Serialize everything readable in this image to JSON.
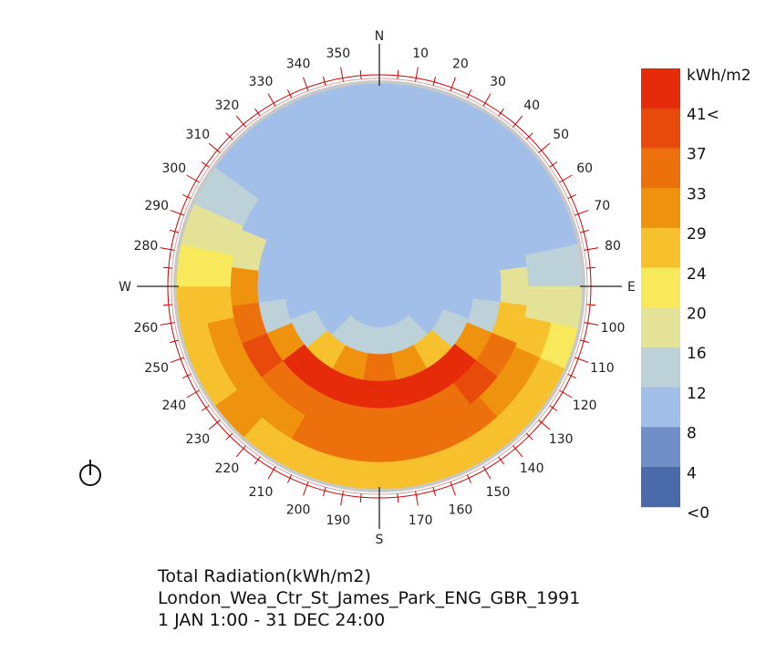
{
  "chart_data": {
    "type": "heatmap",
    "projection": "polar-sky-dome",
    "compass": {
      "north": "N",
      "east": "E",
      "south": "S",
      "west": "W"
    },
    "azimuth_labels": [
      "10",
      "20",
      "30",
      "40",
      "50",
      "60",
      "70",
      "80",
      "100",
      "110",
      "120",
      "130",
      "140",
      "150",
      "160",
      "170",
      "190",
      "200",
      "210",
      "220",
      "230",
      "240",
      "250",
      "260",
      "280",
      "290",
      "300",
      "310",
      "320",
      "330",
      "340",
      "350"
    ],
    "azimuth_label_degrees": [
      10,
      20,
      30,
      40,
      50,
      60,
      70,
      80,
      100,
      110,
      120,
      130,
      140,
      150,
      160,
      170,
      190,
      200,
      210,
      220,
      230,
      240,
      250,
      260,
      280,
      290,
      300,
      310,
      320,
      330,
      340,
      350
    ],
    "legend": {
      "unit": "kWh/m2",
      "labels": [
        "41<",
        "37",
        "33",
        "29",
        "24",
        "20",
        "16",
        "12",
        "8",
        "4",
        "<0"
      ],
      "colors": [
        "#e62b0a",
        "#e84a0c",
        "#ec700c",
        "#ef920d",
        "#f6c12c",
        "#f7e85c",
        "#e3e296",
        "#bdd1d8",
        "#a2bfea",
        "#6f8fc6",
        "#4a6aaa"
      ]
    },
    "sky_patches": {
      "rings": [
        {
          "altitude_from": 0,
          "altitude_to": 12,
          "sectors": 30,
          "offset_deg": 0,
          "values": [
            8,
            8,
            8,
            8,
            8,
            9,
            11,
            14,
            19,
            23,
            26,
            27,
            28,
            28,
            28,
            27,
            26,
            26,
            27,
            29,
            28,
            26,
            24,
            21,
            19,
            14,
            10,
            9,
            8,
            8
          ]
        },
        {
          "altitude_from": 12,
          "altitude_to": 24,
          "sectors": 30,
          "offset_deg": 0,
          "values": [
            8,
            8,
            8,
            8,
            8,
            9,
            10,
            13,
            16,
            25,
            30,
            32,
            33,
            33,
            34,
            35,
            34,
            33,
            32,
            32,
            32,
            30,
            27,
            22,
            16,
            12,
            10,
            9,
            8,
            8
          ]
        },
        {
          "altitude_from": 24,
          "altitude_to": 36,
          "sectors": 24,
          "offset_deg": 0,
          "values": [
            8,
            8,
            8,
            8,
            9,
            11,
            16,
            28,
            36,
            37,
            35,
            34,
            34,
            34,
            34,
            34,
            37,
            34,
            29,
            16,
            10,
            9,
            8,
            8
          ]
        },
        {
          "altitude_from": 36,
          "altitude_to": 48,
          "sectors": 24,
          "offset_deg": 0,
          "values": [
            8,
            8,
            8,
            8,
            9,
            10,
            11,
            12,
            29,
            41,
            42,
            42,
            42,
            42,
            42,
            41,
            29,
            12,
            10,
            9,
            8,
            8,
            8,
            8
          ]
        },
        {
          "altitude_from": 48,
          "altitude_to": 60,
          "sectors": 18,
          "offset_deg": 0,
          "values": [
            8,
            8,
            8,
            9,
            10,
            11,
            12,
            24,
            31,
            33,
            31,
            24,
            12,
            11,
            10,
            9,
            8,
            8
          ]
        },
        {
          "altitude_from": 60,
          "altitude_to": 72,
          "sectors": 12,
          "offset_deg": 0,
          "values": [
            8,
            8,
            9,
            10,
            11,
            12,
            12,
            12,
            11,
            10,
            9,
            8
          ]
        },
        {
          "altitude_from": 72,
          "altitude_to": 84,
          "sectors": 6,
          "offset_deg": 0,
          "values": [
            8,
            9,
            10,
            10,
            9,
            8
          ]
        },
        {
          "altitude_from": 84,
          "altitude_to": 90,
          "sectors": 1,
          "offset_deg": 0,
          "values": [
            8
          ]
        }
      ]
    }
  },
  "caption": {
    "title": "Total Radiation(kWh/m2)",
    "location": "London_Wea_Ctr_St_James_Park_ENG_GBR_1991",
    "period": "1 JAN 1:00 - 31 DEC 24:00"
  },
  "icons": {
    "toggle": "power-icon"
  }
}
